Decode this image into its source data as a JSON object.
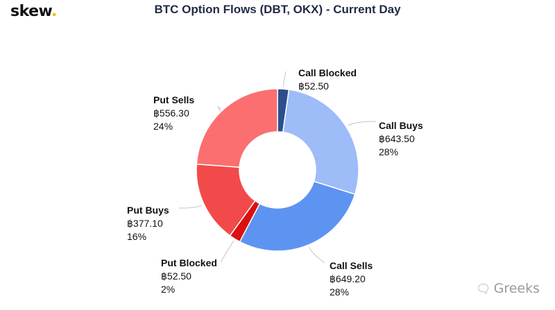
{
  "brand": {
    "name": "skew",
    "dot": "."
  },
  "watermark": {
    "icon": "wechat-icon",
    "text": "Greeks"
  },
  "chart_data": {
    "type": "pie",
    "variant": "donut",
    "title": "BTC Option Flows (DBT, OKX) - Current Day",
    "slices": [
      {
        "name": "Call Blocked",
        "value": "฿52.50",
        "amount": 52.5,
        "percent": "2%",
        "color": "#2d4e8e"
      },
      {
        "name": "Call Buys",
        "value": "฿643.50",
        "amount": 643.5,
        "percent": "28%",
        "color": "#9dbcf8"
      },
      {
        "name": "Call Sells",
        "value": "฿649.20",
        "amount": 649.2,
        "percent": "28%",
        "color": "#5d94f2"
      },
      {
        "name": "Put Blocked",
        "value": "฿52.50",
        "amount": 52.5,
        "percent": "2%",
        "color": "#dd1010"
      },
      {
        "name": "Put Buys",
        "value": "฿377.10",
        "amount": 377.1,
        "percent": "16%",
        "color": "#f24a4a"
      },
      {
        "name": "Put Sells",
        "value": "฿556.30",
        "amount": 556.3,
        "percent": "24%",
        "color": "#fb6f70"
      }
    ]
  }
}
